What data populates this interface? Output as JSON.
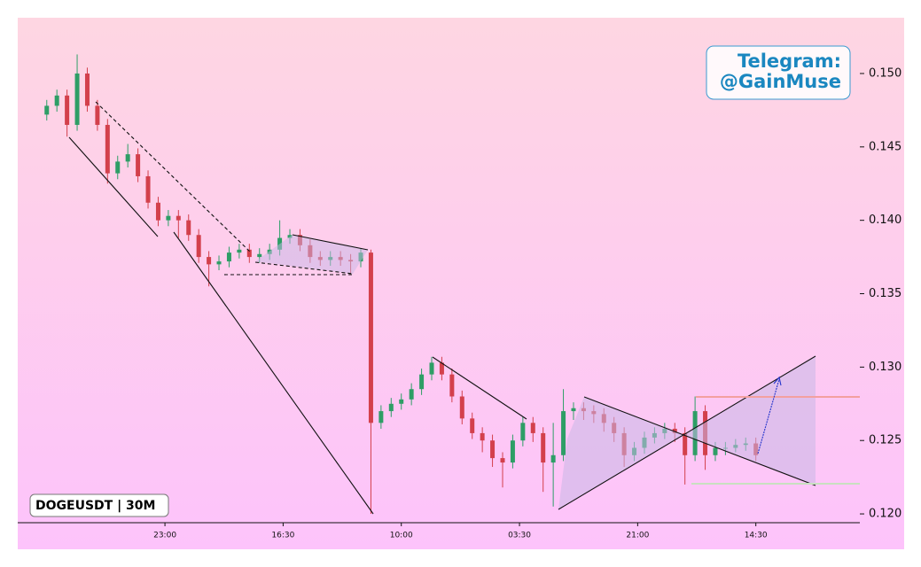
{
  "chart_data": {
    "type": "candlestick",
    "symbol": "DOGEUSDT | 30M",
    "watermark": [
      "Telegram:",
      "@GainMuse"
    ],
    "up_color": "#2e9e66",
    "down_color": "#d3404c",
    "x": [
      0,
      3,
      6,
      9,
      12,
      15,
      18,
      21,
      24,
      27,
      30,
      33,
      36,
      39,
      42,
      45,
      48,
      51,
      54,
      57,
      60,
      63,
      66,
      69,
      72,
      75,
      78,
      81,
      84,
      87,
      90,
      93,
      96,
      99,
      102,
      105,
      108,
      111,
      114,
      117,
      120,
      123,
      126,
      129,
      132,
      135,
      138,
      141,
      144,
      147,
      150,
      153,
      156,
      159,
      162,
      165,
      168,
      171,
      174,
      177,
      180,
      183,
      186,
      189,
      192,
      195,
      198,
      201,
      204,
      207,
      210
    ],
    "open": [
      0.1472,
      0.1478,
      0.1485,
      0.1465,
      0.15,
      0.1478,
      0.1465,
      0.1432,
      0.144,
      0.1445,
      0.143,
      0.1412,
      0.14,
      0.1403,
      0.14,
      0.139,
      0.1375,
      0.137,
      0.1372,
      0.1378,
      0.138,
      0.1375,
      0.1377,
      0.138,
      0.1388,
      0.139,
      0.1383,
      0.1375,
      0.1373,
      0.1375,
      0.1373,
      0.1372,
      0.1378,
      0.1262,
      0.127,
      0.1275,
      0.1278,
      0.1285,
      0.1295,
      0.1303,
      0.1295,
      0.128,
      0.1265,
      0.1255,
      0.125,
      0.1238,
      0.1235,
      0.125,
      0.1262,
      0.1255,
      0.1235,
      0.124,
      0.127,
      0.1272,
      0.127,
      0.1268,
      0.1262,
      0.1255,
      0.124,
      0.1245,
      0.1252,
      0.1255,
      0.1258,
      0.1255,
      0.124,
      0.127,
      0.124,
      0.1245,
      0.1245,
      0.1247,
      0.1248
    ],
    "high": [
      0.1482,
      0.1489,
      0.1489,
      0.1513,
      0.1504,
      0.1482,
      0.1469,
      0.1444,
      0.1452,
      0.1449,
      0.1434,
      0.1416,
      0.1407,
      0.1407,
      0.1404,
      0.1394,
      0.1379,
      0.1376,
      0.1382,
      0.1384,
      0.1384,
      0.1381,
      0.1384,
      0.14,
      0.1394,
      0.1394,
      0.1387,
      0.1379,
      0.1379,
      0.1379,
      0.1377,
      0.1381,
      0.138,
      0.1274,
      0.1279,
      0.1282,
      0.1289,
      0.1299,
      0.1307,
      0.1307,
      0.1299,
      0.1284,
      0.1269,
      0.1259,
      0.1254,
      0.1242,
      0.1254,
      0.1266,
      0.1266,
      0.1259,
      0.1262,
      0.1285,
      0.1276,
      0.1276,
      0.1274,
      0.1272,
      0.1266,
      0.1259,
      0.1249,
      0.1256,
      0.1259,
      0.1262,
      0.1262,
      0.1259,
      0.128,
      0.1274,
      0.1249,
      0.1249,
      0.1251,
      0.1252,
      0.1252
    ],
    "low": [
      0.1468,
      0.1474,
      0.1457,
      0.1461,
      0.1474,
      0.1461,
      0.1425,
      0.1428,
      0.1436,
      0.1426,
      0.1408,
      0.1396,
      0.1396,
      0.1388,
      0.1386,
      0.1371,
      0.1355,
      0.1366,
      0.1368,
      0.1374,
      0.1371,
      0.1371,
      0.1373,
      0.1376,
      0.1384,
      0.1379,
      0.1371,
      0.1369,
      0.1369,
      0.1369,
      0.1364,
      0.1368,
      0.12,
      0.1258,
      0.1266,
      0.1271,
      0.1274,
      0.1281,
      0.1291,
      0.1291,
      0.1276,
      0.1261,
      0.1251,
      0.1242,
      0.1232,
      0.1218,
      0.1231,
      0.1246,
      0.1249,
      0.1215,
      0.1205,
      0.1236,
      0.1264,
      0.1264,
      0.1262,
      0.1256,
      0.1249,
      0.1232,
      0.1236,
      0.1241,
      0.1248,
      0.1251,
      0.1249,
      0.122,
      0.1236,
      0.123,
      0.1236,
      0.124,
      0.1242,
      0.1243,
      0.1236
    ],
    "close": [
      0.1478,
      0.1485,
      0.1465,
      0.15,
      0.1478,
      0.1465,
      0.1432,
      0.144,
      0.1445,
      0.143,
      0.1412,
      0.14,
      0.1403,
      0.14,
      0.139,
      0.1375,
      0.137,
      0.1372,
      0.1378,
      0.138,
      0.1375,
      0.1377,
      0.138,
      0.1388,
      0.139,
      0.1383,
      0.1375,
      0.1373,
      0.1375,
      0.1373,
      0.1372,
      0.1378,
      0.1262,
      0.127,
      0.1275,
      0.1278,
      0.1285,
      0.1295,
      0.1303,
      0.1295,
      0.128,
      0.1265,
      0.1255,
      0.125,
      0.1238,
      0.1235,
      0.125,
      0.1262,
      0.1255,
      0.1235,
      0.124,
      0.127,
      0.1272,
      0.127,
      0.1268,
      0.1262,
      0.1255,
      0.124,
      0.1245,
      0.1252,
      0.1255,
      0.1258,
      0.1255,
      0.124,
      0.127,
      0.124,
      0.1245,
      0.1245,
      0.1247,
      0.1248,
      0.124
    ],
    "xlim": [
      -8.6,
      240.8
    ],
    "xticks": [
      {
        "value": 35,
        "label": "23:00"
      },
      {
        "value": 70,
        "label": "16:30"
      },
      {
        "value": 105,
        "label": "10:00"
      },
      {
        "value": 140,
        "label": "03:30"
      },
      {
        "value": 175,
        "label": "21:00"
      },
      {
        "value": 210,
        "label": "14:30"
      }
    ],
    "ylim": [
      0.1194,
      0.1538
    ],
    "yticks": [
      {
        "value": 0.12,
        "label": "0.120"
      },
      {
        "value": 0.125,
        "label": "0.125"
      },
      {
        "value": 0.13,
        "label": "0.130"
      },
      {
        "value": 0.135,
        "label": "0.135"
      },
      {
        "value": 0.14,
        "label": "0.140"
      },
      {
        "value": 0.145,
        "label": "0.145"
      },
      {
        "value": 0.15,
        "label": "0.150"
      }
    ]
  }
}
